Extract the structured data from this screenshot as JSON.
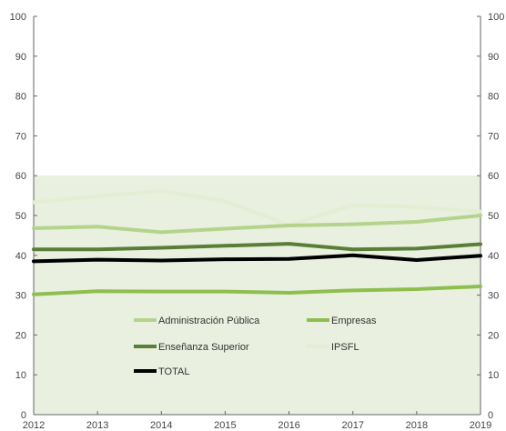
{
  "chart_data": {
    "type": "line",
    "x": [
      2012,
      2013,
      2014,
      2015,
      2016,
      2017,
      2018,
      2019
    ],
    "xlim": [
      2012,
      2019
    ],
    "ylim": [
      0,
      100
    ],
    "y_ticks": [
      0,
      10,
      20,
      30,
      40,
      50,
      60,
      70,
      80,
      90,
      100
    ],
    "y_tick_labels": [
      "0",
      "10",
      "20",
      "30",
      "40",
      "50",
      "60",
      "70",
      "80",
      "90",
      "100"
    ],
    "x_tick_labels": [
      "2012",
      "2013",
      "2014",
      "2015",
      "2016",
      "2017",
      "2018",
      "2019"
    ],
    "grid": false,
    "shaded_band": {
      "from": 0,
      "to": 60,
      "color": "#e9f0df"
    },
    "legend_position": "bottom-center",
    "series": [
      {
        "name": "Administración Pública",
        "color": "#b4d48c",
        "width": 4,
        "values": [
          46.8,
          47.2,
          45.8,
          46.7,
          47.5,
          47.8,
          48.4,
          50.0
        ]
      },
      {
        "name": "Empresas",
        "color": "#8dbf4f",
        "width": 4,
        "values": [
          30.2,
          31.0,
          30.9,
          30.9,
          30.6,
          31.2,
          31.5,
          32.2
        ]
      },
      {
        "name": "Enseñanza Superior",
        "color": "#5a7d37",
        "width": 4,
        "values": [
          41.5,
          41.5,
          41.9,
          42.4,
          42.9,
          41.5,
          41.7,
          42.8
        ]
      },
      {
        "name": "IPSFL",
        "color": "#e3eed5",
        "width": 4,
        "values": [
          53.3,
          54.8,
          56.2,
          53.6,
          47.6,
          52.6,
          52.1,
          51.0
        ]
      },
      {
        "name": "TOTAL",
        "color": "#000000",
        "width": 4,
        "values": [
          38.5,
          38.9,
          38.7,
          39.0,
          39.1,
          40.0,
          38.8,
          39.9
        ]
      }
    ]
  }
}
